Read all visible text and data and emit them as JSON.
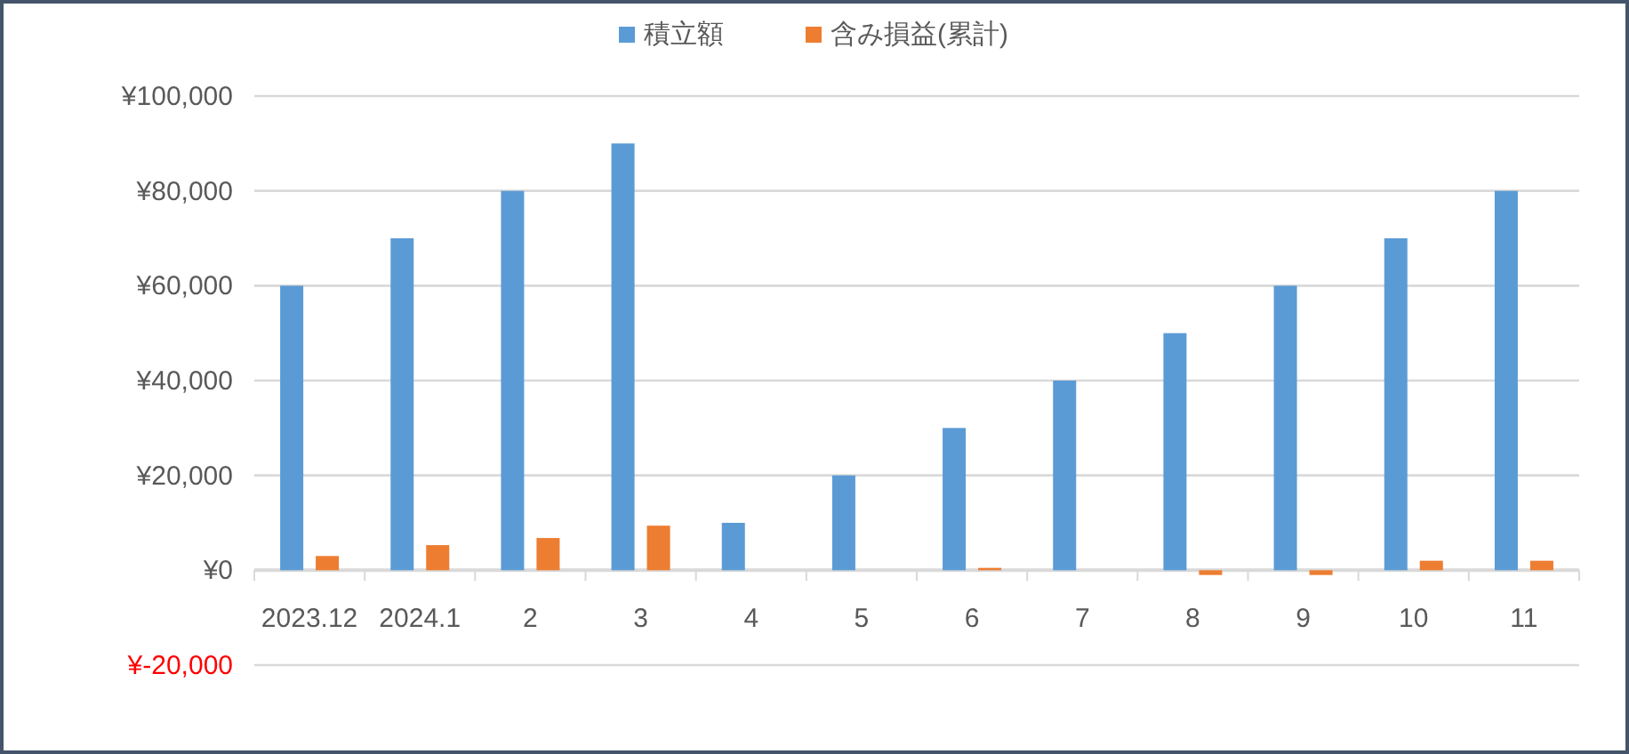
{
  "chart_data": {
    "type": "bar",
    "categories": [
      "2023.12",
      "2024.1",
      "2",
      "3",
      "4",
      "5",
      "6",
      "7",
      "8",
      "9",
      "10",
      "11"
    ],
    "series": [
      {
        "name": "積立額",
        "color": "#5b9bd5",
        "values": [
          60000,
          70000,
          80000,
          90000,
          10000,
          20000,
          30000,
          40000,
          50000,
          60000,
          70000,
          80000
        ]
      },
      {
        "name": "含み損益(累計)",
        "color": "#ed7d31",
        "values": [
          3000,
          5300,
          6800,
          9400,
          null,
          null,
          500,
          null,
          -1000,
          -1000,
          2000,
          2000
        ]
      }
    ],
    "ylim": [
      -20000,
      100000
    ],
    "yticks": [
      {
        "value": -20000,
        "label": "¥-20,000"
      },
      {
        "value": 0,
        "label": "¥0"
      },
      {
        "value": 20000,
        "label": "¥20,000"
      },
      {
        "value": 40000,
        "label": "¥40,000"
      },
      {
        "value": 60000,
        "label": "¥60,000"
      },
      {
        "value": 80000,
        "label": "¥80,000"
      },
      {
        "value": 100000,
        "label": "¥100,000"
      }
    ],
    "grid": "y",
    "legend": "top"
  }
}
